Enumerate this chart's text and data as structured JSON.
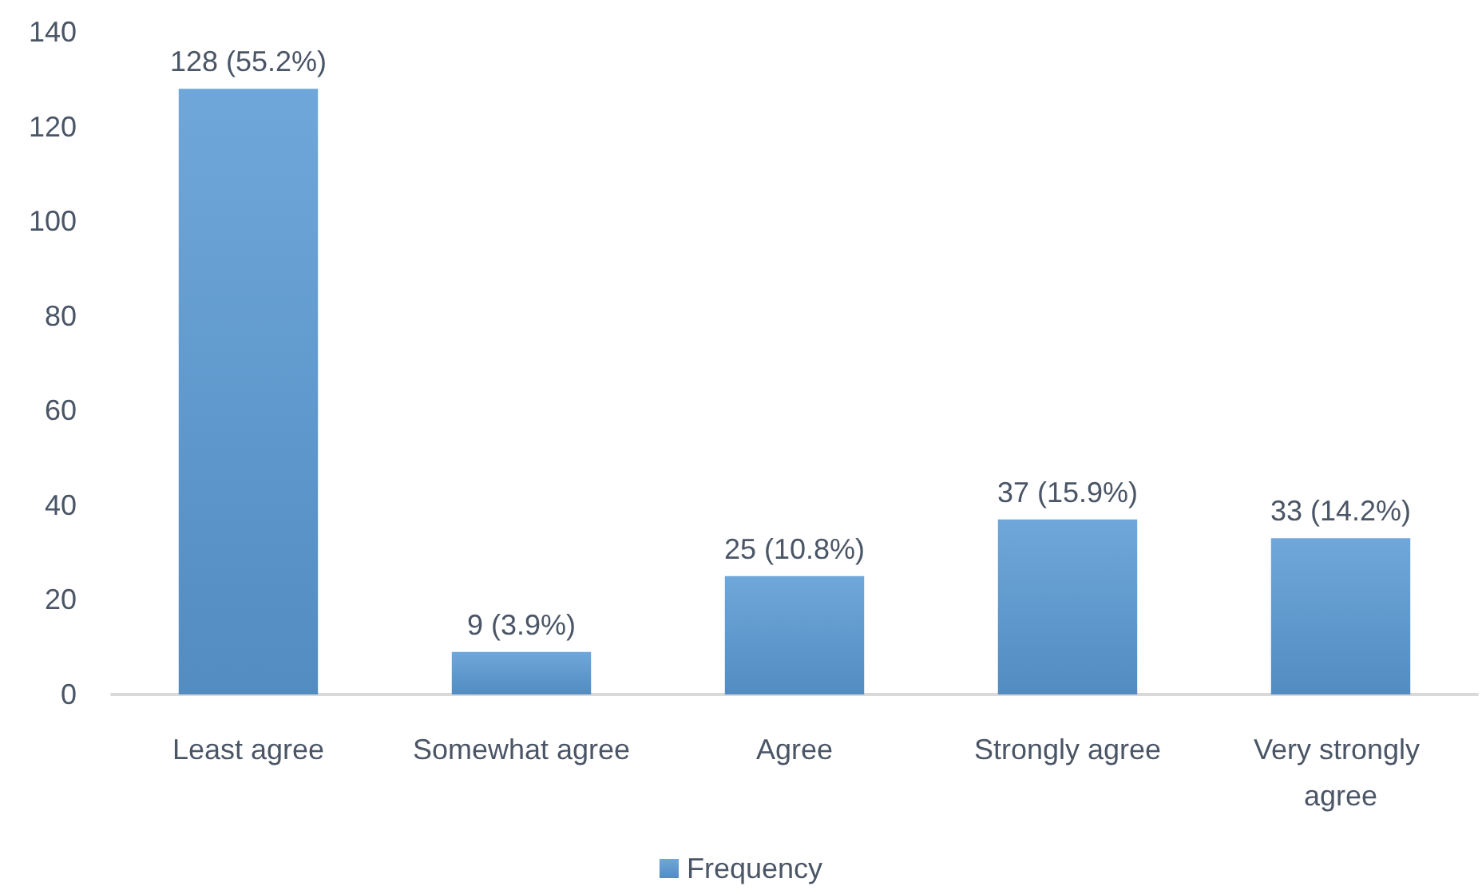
{
  "chart_data": {
    "type": "bar",
    "categories": [
      "Least agree",
      "Somewhat agree",
      "Agree",
      "Strongly agree",
      "Very strongly agree"
    ],
    "series": [
      {
        "name": "Frequency",
        "color": "#5b9bd5",
        "values": [
          128,
          9,
          25,
          37,
          33
        ],
        "value_labels": [
          "128 (55.2%)",
          "9 (3.9%)",
          "25 (10.8%)",
          "37 (15.9%)",
          "33 (14.2%)"
        ]
      }
    ],
    "ylim": [
      0,
      140
    ],
    "yticks": [
      0,
      20,
      40,
      60,
      80,
      100,
      120,
      140
    ],
    "grid": false,
    "legend": "bottom"
  }
}
